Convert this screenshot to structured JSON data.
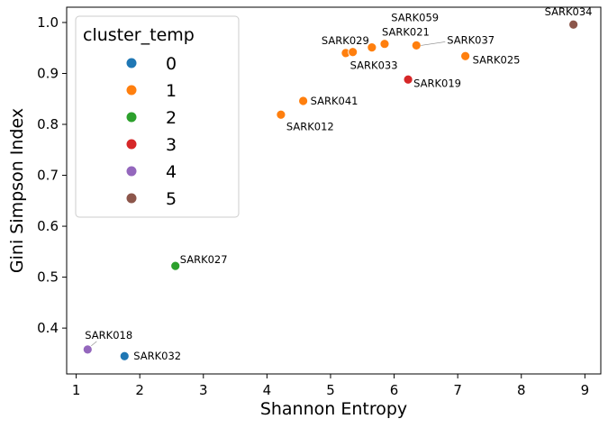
{
  "chart_data": {
    "type": "scatter",
    "xlabel": "Shannon Entropy",
    "ylabel": "Gini Simpson Index",
    "xlim": [
      0.85,
      9.25
    ],
    "ylim": [
      0.31,
      1.03
    ],
    "xticks": [
      1,
      2,
      3,
      4,
      5,
      6,
      7,
      8,
      9
    ],
    "yticks": [
      0.4,
      0.5,
      0.6,
      0.7,
      0.8,
      0.9,
      1.0
    ],
    "ytick_labels": [
      "0.4",
      "0.5",
      "0.6",
      "0.7",
      "0.8",
      "0.9",
      "1.0"
    ],
    "grid": false,
    "legend": {
      "title": "cluster_temp",
      "placement": "top-left",
      "entries": [
        {
          "label": "0",
          "color": "#1f77b4"
        },
        {
          "label": "1",
          "color": "#ff7f0e"
        },
        {
          "label": "2",
          "color": "#2ca02c"
        },
        {
          "label": "3",
          "color": "#d62728"
        },
        {
          "label": "4",
          "color": "#9467bd"
        },
        {
          "label": "5",
          "color": "#8c564b"
        }
      ]
    },
    "points": [
      {
        "label": "SARK032",
        "x": 1.76,
        "y": 0.345,
        "cluster": 0
      },
      {
        "label": "SARK018",
        "x": 1.18,
        "y": 0.358,
        "cluster": 4
      },
      {
        "label": "SARK027",
        "x": 2.56,
        "y": 0.522,
        "cluster": 2
      },
      {
        "label": "SARK012",
        "x": 4.22,
        "y": 0.819,
        "cluster": 1
      },
      {
        "label": "SARK041",
        "x": 4.57,
        "y": 0.846,
        "cluster": 1
      },
      {
        "label": "SARK029",
        "x": 5.24,
        "y": 0.94,
        "cluster": 1
      },
      {
        "label": "SARK033",
        "x": 5.35,
        "y": 0.942,
        "cluster": 1
      },
      {
        "label": "",
        "x": 5.65,
        "y": 0.951,
        "cluster": 1
      },
      {
        "label": "SARK021",
        "x": 5.85,
        "y": 0.958,
        "cluster": 1
      },
      {
        "label": "SARK059",
        "x": 6.35,
        "y": 0.955,
        "cluster": 1
      },
      {
        "label": "SARK037",
        "x": 6.35,
        "y": 0.955,
        "cluster": 1
      },
      {
        "label": "SARK025",
        "x": 7.12,
        "y": 0.934,
        "cluster": 1
      },
      {
        "label": "SARK019",
        "x": 6.22,
        "y": 0.888,
        "cluster": 3
      },
      {
        "label": "SARK034",
        "x": 8.82,
        "y": 0.996,
        "cluster": 5
      }
    ]
  }
}
